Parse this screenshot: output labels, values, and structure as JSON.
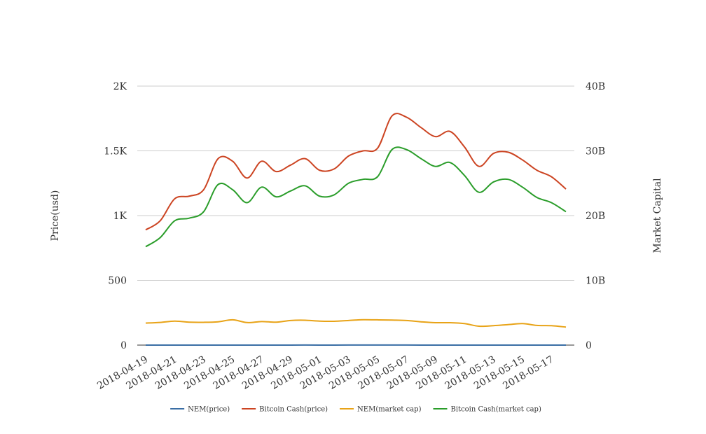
{
  "chart_data": {
    "type": "line",
    "x": [
      "2018-04-19",
      "2018-04-20",
      "2018-04-21",
      "2018-04-22",
      "2018-04-23",
      "2018-04-24",
      "2018-04-25",
      "2018-04-26",
      "2018-04-27",
      "2018-04-28",
      "2018-04-29",
      "2018-04-30",
      "2018-05-01",
      "2018-05-02",
      "2018-05-03",
      "2018-05-04",
      "2018-05-05",
      "2018-05-06",
      "2018-05-07",
      "2018-05-08",
      "2018-05-09",
      "2018-05-10",
      "2018-05-11",
      "2018-05-12",
      "2018-05-13",
      "2018-05-14",
      "2018-05-15",
      "2018-05-16",
      "2018-05-17",
      "2018-05-18"
    ],
    "x_tick_labels": [
      "2018-04-19",
      "2018-04-21",
      "2018-04-23",
      "2018-04-25",
      "2018-04-27",
      "2018-04-29",
      "2018-05-01",
      "2018-05-03",
      "2018-05-05",
      "2018-05-07",
      "2018-05-09",
      "2018-05-11",
      "2018-05-13",
      "2018-05-15",
      "2018-05-17"
    ],
    "ylabel": "Price(usd)",
    "y2label": "Market Capital",
    "ylim": [
      0,
      2000
    ],
    "y2lim": [
      0,
      40000000000
    ],
    "y_ticks": [
      0,
      500,
      1000,
      1500,
      2000
    ],
    "y_tick_labels": [
      "0",
      "500",
      "1K",
      "1.5K",
      "2K"
    ],
    "y2_ticks": [
      0,
      10000000000,
      20000000000,
      30000000000,
      40000000000
    ],
    "y2_tick_labels": [
      "0",
      "10B",
      "20B",
      "30B",
      "40B"
    ],
    "grid": true,
    "legend_position": "bottom",
    "series": [
      {
        "name": "NEM(price)",
        "axis": "left",
        "color": "#3a6ea5",
        "values": [
          0.3,
          0.31,
          0.33,
          0.33,
          0.33,
          0.34,
          0.35,
          0.33,
          0.34,
          0.33,
          0.35,
          0.36,
          0.35,
          0.35,
          0.36,
          0.37,
          0.37,
          0.37,
          0.36,
          0.35,
          0.33,
          0.33,
          0.32,
          0.28,
          0.29,
          0.3,
          0.32,
          0.29,
          0.28,
          0.26
        ]
      },
      {
        "name": "Bitcoin Cash(price)",
        "axis": "left",
        "color": "#cc4422",
        "values": [
          890,
          960,
          1130,
          1150,
          1200,
          1440,
          1420,
          1290,
          1420,
          1340,
          1390,
          1440,
          1350,
          1360,
          1460,
          1500,
          1520,
          1770,
          1760,
          1680,
          1610,
          1650,
          1530,
          1380,
          1480,
          1490,
          1430,
          1350,
          1300,
          1205
        ]
      },
      {
        "name": "NEM(market cap)",
        "axis": "right",
        "color": "#e8a317",
        "values": [
          3400000000,
          3500000000,
          3700000000,
          3540000000,
          3520000000,
          3600000000,
          3900000000,
          3480000000,
          3640000000,
          3540000000,
          3800000000,
          3840000000,
          3700000000,
          3680000000,
          3800000000,
          3920000000,
          3900000000,
          3860000000,
          3800000000,
          3600000000,
          3460000000,
          3460000000,
          3320000000,
          2920000000,
          3000000000,
          3160000000,
          3320000000,
          3040000000,
          3000000000,
          2780000000
        ]
      },
      {
        "name": "Bitcoin Cash(market cap)",
        "axis": "right",
        "color": "#2a9d2a",
        "values": [
          15200000000,
          16600000000,
          19200000000,
          19600000000,
          20600000000,
          24800000000,
          24000000000,
          22000000000,
          24400000000,
          22900000000,
          23800000000,
          24600000000,
          23000000000,
          23200000000,
          25000000000,
          25600000000,
          26000000000,
          30200000000,
          30200000000,
          28800000000,
          27600000000,
          28200000000,
          26200000000,
          23600000000,
          25200000000,
          25600000000,
          24400000000,
          22800000000,
          22000000000,
          20600000000
        ]
      }
    ]
  }
}
